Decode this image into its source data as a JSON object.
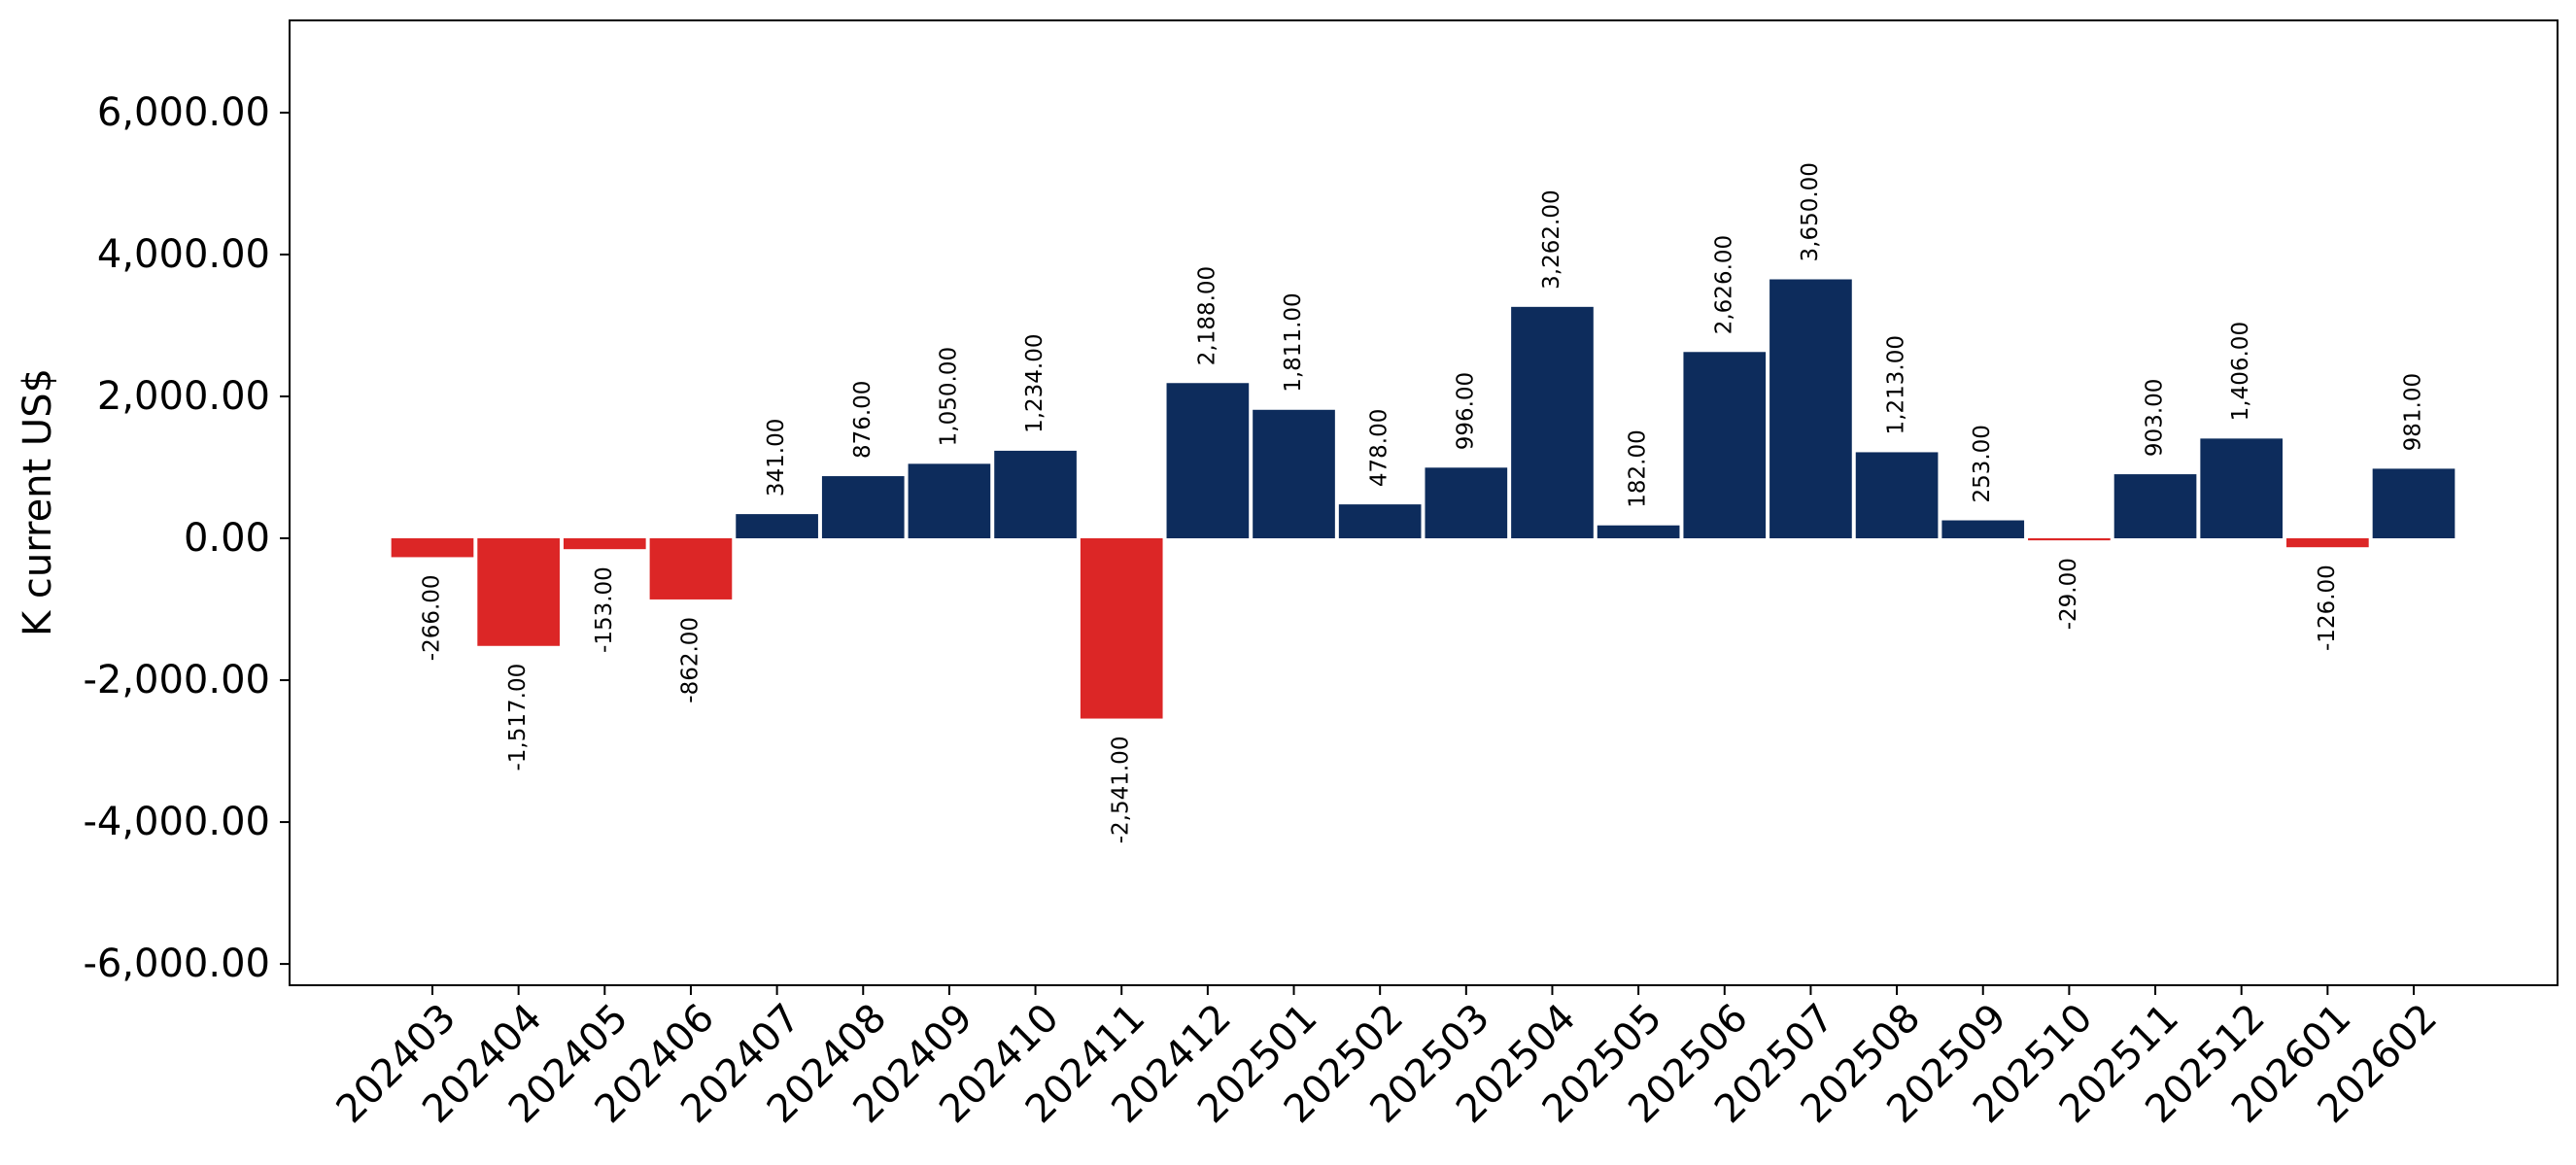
{
  "chart_data": {
    "type": "bar",
    "title": "",
    "xlabel": "",
    "ylabel": "K current US$",
    "ylim": [
      -6300,
      7300
    ],
    "yticks": [
      -6000,
      -4000,
      -2000,
      0,
      2000,
      4000,
      6000
    ],
    "ytick_labels": [
      "-6,000.00",
      "-4,000.00",
      "-2,000.00",
      "0.00",
      "2,000.00",
      "4,000.00",
      "6,000.00"
    ],
    "grid": false,
    "legend": "none",
    "colors": {
      "positive": "#0d2c5c",
      "negative": "#dc2626"
    },
    "categories": [
      "202403",
      "202404",
      "202405",
      "202406",
      "202407",
      "202408",
      "202409",
      "202410",
      "202411",
      "202412",
      "202501",
      "202502",
      "202503",
      "202504",
      "202505",
      "202506",
      "202507",
      "202508",
      "202509",
      "202510",
      "202511",
      "202512",
      "202601",
      "202602"
    ],
    "values": [
      -266,
      -1517,
      -153,
      -862,
      341,
      876,
      1050,
      1234,
      -2541,
      2188,
      1811,
      478,
      996,
      3262,
      182,
      2626,
      3650,
      1213,
      253,
      -29,
      903,
      1406,
      -126,
      981
    ],
    "data_labels": [
      "-266.00",
      "-1,517.00",
      "-153.00",
      "-862.00",
      "341.00",
      "876.00",
      "1,050.00",
      "1,234.00",
      "-2,541.00",
      "2,188.00",
      "1,811.00",
      "478.00",
      "996.00",
      "3,262.00",
      "182.00",
      "2,626.00",
      "3,650.00",
      "1,213.00",
      "253.00",
      "-29.00",
      "903.00",
      "1,406.00",
      "-126.00",
      "981.00"
    ]
  }
}
